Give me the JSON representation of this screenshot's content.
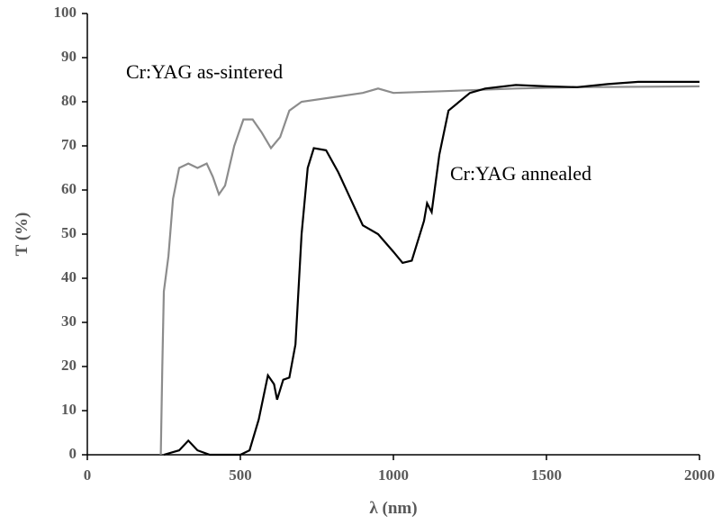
{
  "chart_data": {
    "type": "line",
    "xlabel": "λ (nm)",
    "ylabel": "T (%)",
    "xlim": [
      0,
      2000
    ],
    "xticks": [
      0,
      500,
      1000,
      1500,
      2000
    ],
    "ylim": [
      0,
      100
    ],
    "yticks": [
      0,
      10,
      20,
      30,
      40,
      50,
      60,
      70,
      80,
      90,
      100
    ],
    "series": [
      {
        "name": "Cr:YAG as-sintered",
        "color": "#8c8c8c",
        "x": [
          240,
          245,
          250,
          265,
          280,
          300,
          330,
          360,
          390,
          410,
          430,
          450,
          480,
          510,
          540,
          570,
          600,
          630,
          660,
          700,
          800,
          900,
          950,
          1000,
          1200,
          1400,
          1600,
          2000
        ],
        "values": [
          0,
          20,
          37,
          45,
          58,
          65,
          66,
          65,
          66,
          63,
          59,
          61,
          70,
          76,
          76,
          73,
          69.5,
          72,
          78,
          80,
          81,
          82,
          83,
          82,
          82.5,
          83,
          83.3,
          83.5
        ]
      },
      {
        "name": "Cr:YAG annealed",
        "color": "#000000",
        "x": [
          250,
          300,
          330,
          360,
          400,
          500,
          530,
          560,
          590,
          610,
          620,
          640,
          660,
          680,
          700,
          720,
          740,
          780,
          820,
          860,
          900,
          950,
          1000,
          1030,
          1060,
          1100,
          1110,
          1125,
          1150,
          1180,
          1250,
          1300,
          1400,
          1500,
          1600,
          1700,
          1800,
          2000
        ],
        "values": [
          0,
          1,
          3.2,
          1,
          0,
          0,
          1,
          8,
          18,
          16,
          12.5,
          17,
          17.5,
          25,
          50,
          65,
          69.5,
          69,
          64,
          58,
          52,
          50,
          46,
          43.5,
          44,
          53,
          57,
          55,
          68,
          78,
          82,
          83,
          83.8,
          83.5,
          83.3,
          84,
          84.5,
          84.5
        ]
      }
    ]
  }
}
